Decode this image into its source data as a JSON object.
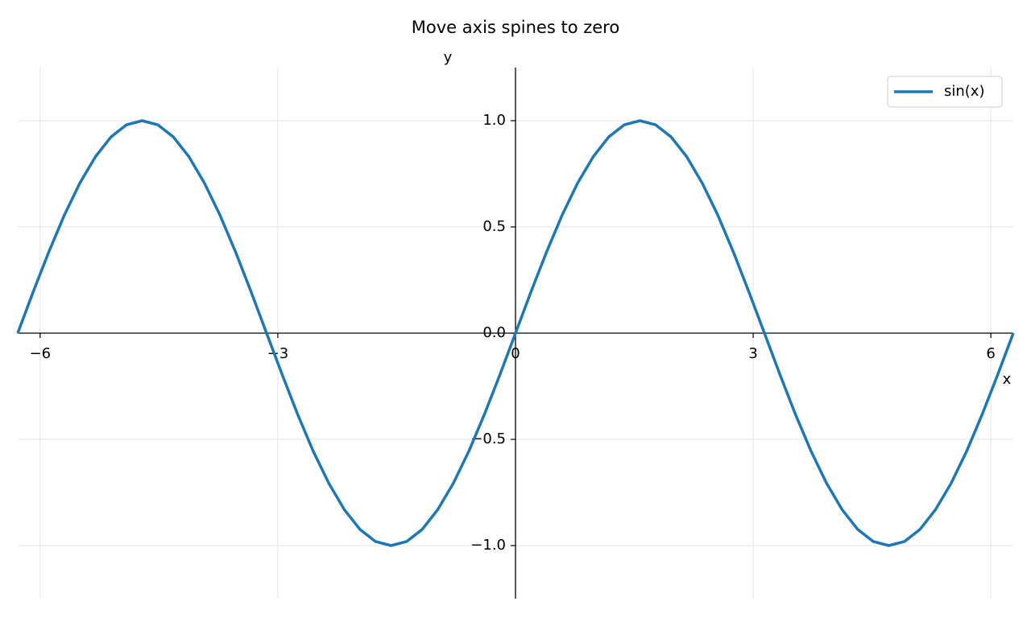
{
  "chart_data": {
    "type": "line",
    "title": "Move axis spines to zero",
    "x_label": "x",
    "y_label": "y",
    "x": [
      -6.283,
      -6.087,
      -5.89,
      -5.694,
      -5.498,
      -5.301,
      -5.105,
      -4.909,
      -4.712,
      -4.516,
      -4.32,
      -4.123,
      -3.927,
      -3.731,
      -3.534,
      -3.338,
      -3.142,
      -2.945,
      -2.749,
      -2.553,
      -2.356,
      -2.16,
      -1.963,
      -1.767,
      -1.571,
      -1.374,
      -1.178,
      -0.982,
      -0.785,
      -0.589,
      -0.393,
      -0.196,
      0,
      0.196,
      0.393,
      0.589,
      0.785,
      0.982,
      1.178,
      1.374,
      1.571,
      1.767,
      1.963,
      2.16,
      2.356,
      2.553,
      2.749,
      2.945,
      3.142,
      3.338,
      3.534,
      3.731,
      3.927,
      4.123,
      4.32,
      4.516,
      4.712,
      4.909,
      5.105,
      5.301,
      5.498,
      5.694,
      5.89,
      6.087,
      6.283
    ],
    "series": [
      {
        "name": "sin(x)",
        "color": "#1f77b4",
        "values": [
          0,
          0.195,
          0.383,
          0.556,
          0.707,
          0.831,
          0.924,
          0.981,
          1,
          0.981,
          0.924,
          0.831,
          0.707,
          0.556,
          0.383,
          0.195,
          0,
          -0.195,
          -0.383,
          -0.556,
          -0.707,
          -0.831,
          -0.924,
          -0.981,
          -1,
          -0.981,
          -0.924,
          -0.831,
          -0.707,
          -0.556,
          -0.383,
          -0.195,
          0,
          0.195,
          0.383,
          0.556,
          0.707,
          0.831,
          0.924,
          0.981,
          1,
          0.981,
          0.924,
          0.831,
          0.707,
          0.556,
          0.383,
          0.195,
          0,
          -0.195,
          -0.383,
          -0.556,
          -0.707,
          -0.831,
          -0.924,
          -0.981,
          -1,
          -0.981,
          -0.924,
          -0.831,
          -0.707,
          -0.556,
          -0.383,
          -0.195,
          0
        ]
      }
    ],
    "xlim": [
      -6.283,
      6.283
    ],
    "ylim": [
      -1.25,
      1.25
    ],
    "xticks": [
      {
        "value": -6,
        "label": "−6"
      },
      {
        "value": -3,
        "label": "−3"
      },
      0,
      3,
      6
    ],
    "yticks": [
      {
        "value": -1.0,
        "label": "−1.0"
      },
      {
        "value": -0.5,
        "label": "−0.5"
      },
      {
        "value": 0.0,
        "label": "0.0"
      },
      {
        "value": 0.5,
        "label": "0.5"
      },
      {
        "value": 1.0,
        "label": "1.0"
      }
    ],
    "grid": true,
    "legend": "upper right"
  }
}
